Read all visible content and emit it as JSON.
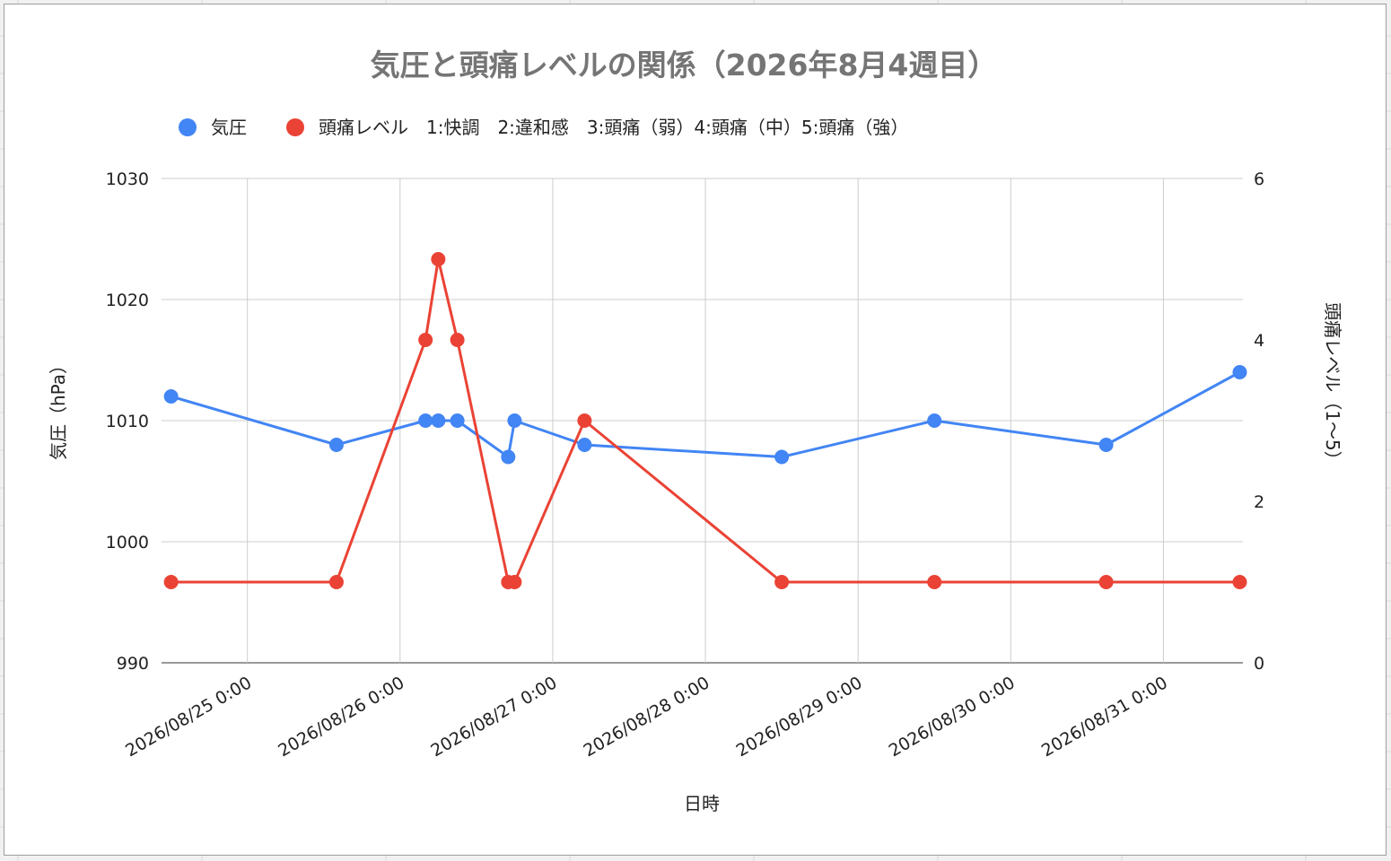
{
  "chart_data": {
    "type": "line",
    "title": "気圧と頭痛レベルの関係（2026年8月4週目）",
    "xlabel": "日時",
    "ylabel_left": "気圧（hPa）",
    "ylabel_right": "頭痛レベル（1〜5）",
    "legend_position": "top",
    "grid": true,
    "x_range": [
      "2026/08/24 10:30",
      "2026/08/31 12:30"
    ],
    "x_ticks": [
      "2026/08/25 0:00",
      "2026/08/26 0:00",
      "2026/08/27 0:00",
      "2026/08/28 0:00",
      "2026/08/29 0:00",
      "2026/08/30 0:00",
      "2026/08/31 0:00"
    ],
    "ylim_left": [
      990,
      1030
    ],
    "yticks_left": [
      "990",
      "1000",
      "1010",
      "1020",
      "1030"
    ],
    "ylim_right": [
      0,
      6
    ],
    "yticks_right": [
      "0",
      "2",
      "4",
      "6"
    ],
    "series": [
      {
        "name": "気圧",
        "axis": "left",
        "color": "#4285F4",
        "x": [
          "2026/08/24 12:00",
          "2026/08/25 14:00",
          "2026/08/26 4:00",
          "2026/08/26 6:00",
          "2026/08/26 9:00",
          "2026/08/26 17:00",
          "2026/08/26 18:00",
          "2026/08/27 5:00",
          "2026/08/28 12:00",
          "2026/08/29 12:00",
          "2026/08/30 15:00",
          "2026/08/31 12:00"
        ],
        "values": [
          1012,
          1008,
          1010,
          1010,
          1010,
          1007,
          1010,
          1008,
          1007,
          1010,
          1008,
          1014
        ]
      },
      {
        "name": "頭痛レベル　1:快調　2:違和感　3:頭痛（弱）4:頭痛（中）5:頭痛（強）",
        "axis": "right",
        "color": "#EA4335",
        "x": [
          "2026/08/24 12:00",
          "2026/08/25 14:00",
          "2026/08/26 4:00",
          "2026/08/26 6:00",
          "2026/08/26 9:00",
          "2026/08/26 17:00",
          "2026/08/26 18:00",
          "2026/08/27 5:00",
          "2026/08/28 12:00",
          "2026/08/29 12:00",
          "2026/08/30 15:00",
          "2026/08/31 12:00"
        ],
        "values": [
          1,
          1,
          4,
          5,
          4,
          1,
          1,
          3,
          1,
          1,
          1,
          1
        ]
      }
    ]
  },
  "colors": {
    "gridline": "#cccccc",
    "title": "#757575"
  }
}
